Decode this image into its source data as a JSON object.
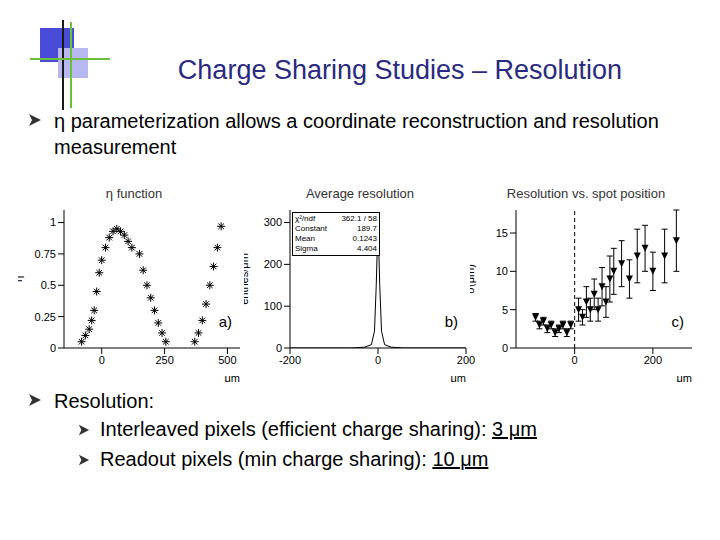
{
  "title": "Charge Sharing Studies – Resolution",
  "bullets": [
    {
      "text": "η parameterization allows a coordinate reconstruction and resolution measurement"
    },
    {
      "text": "Resolution:",
      "sub": [
        {
          "text": "Interleaved pixels (efficient charge sharing):",
          "value": "3 μm"
        },
        {
          "text": "Readout pixels (min charge sharing):",
          "value": "10 μm"
        }
      ]
    }
  ],
  "chart_data": [
    {
      "type": "scatter",
      "title": "η function",
      "ylabel": "η",
      "xlabel": "μm",
      "annotation": "a)",
      "marker": "star",
      "color": "#000000",
      "x": [
        -80,
        -65,
        -50,
        -40,
        -30,
        -20,
        -10,
        0,
        15,
        30,
        45,
        60,
        75,
        90,
        105,
        120,
        150,
        165,
        180,
        195,
        210,
        225,
        240,
        255,
        370,
        385,
        400,
        415,
        430,
        445,
        460,
        475
      ],
      "values": [
        0.05,
        0.1,
        0.15,
        0.22,
        0.3,
        0.45,
        0.6,
        0.7,
        0.8,
        0.88,
        0.93,
        0.95,
        0.93,
        0.9,
        0.85,
        0.8,
        0.75,
        0.62,
        0.5,
        0.4,
        0.3,
        0.2,
        0.12,
        0.05,
        0.05,
        0.12,
        0.22,
        0.35,
        0.5,
        0.65,
        0.8,
        0.97
      ],
      "xlim": [
        -150,
        550
      ],
      "xticks": [
        0,
        250,
        500
      ],
      "ylim": [
        0,
        1.1
      ],
      "yticks": [
        0,
        0.25,
        0.5,
        0.75,
        1
      ]
    },
    {
      "type": "line",
      "title": "Average resolution",
      "ylabel": "entries/μm",
      "xlabel": "μm",
      "annotation": "b)",
      "color": "#000000",
      "stats": [
        {
          "label": "χ²/ndf",
          "value": "362.1  /  58"
        },
        {
          "label": "Constant",
          "value": "189.7"
        },
        {
          "label": "Mean",
          "value": "0.1243"
        },
        {
          "label": "Sigma",
          "value": "4.404"
        }
      ],
      "x": [
        -200,
        -60,
        -30,
        -15,
        -8,
        -4,
        0,
        4,
        8,
        15,
        30,
        60,
        200
      ],
      "values": [
        0,
        0,
        2,
        8,
        40,
        150,
        300,
        150,
        40,
        8,
        2,
        0,
        0
      ],
      "xlim": [
        -200,
        200
      ],
      "xticks": [
        -200,
        0,
        200
      ],
      "ylim": [
        0,
        330
      ],
      "yticks": [
        0,
        100,
        200,
        300
      ]
    },
    {
      "type": "scatter",
      "title": "Resolution vs. spot position",
      "ylabel": "σ(μm)",
      "xlabel": "μm",
      "annotation": "c)",
      "marker": "triangle_down",
      "color": "#000000",
      "vlines": [
        0
      ],
      "x": [
        -100,
        -90,
        -80,
        -70,
        -60,
        -50,
        -40,
        -30,
        -20,
        -10,
        10,
        20,
        30,
        40,
        50,
        60,
        70,
        80,
        90,
        100,
        120,
        140,
        160,
        180,
        200,
        230,
        260
      ],
      "values": [
        4,
        3,
        3.5,
        2.5,
        3,
        2,
        2.5,
        3,
        2,
        3,
        5,
        4,
        6,
        5,
        7,
        5,
        8,
        6,
        9,
        10,
        11,
        9,
        12,
        13,
        10,
        12,
        14
      ],
      "error": [
        0.5,
        0.5,
        0.5,
        0.5,
        0.5,
        0.5,
        0.5,
        0.5,
        0.5,
        0.5,
        1.5,
        1,
        2,
        1.5,
        2,
        1.5,
        2.5,
        2,
        3,
        3,
        3,
        2.5,
        3.5,
        3,
        2.5,
        3.5,
        4
      ],
      "xlim": [
        -150,
        300
      ],
      "xticks": [
        0,
        200
      ],
      "ylim": [
        0,
        18
      ],
      "yticks": [
        0,
        5,
        10,
        15
      ]
    }
  ]
}
